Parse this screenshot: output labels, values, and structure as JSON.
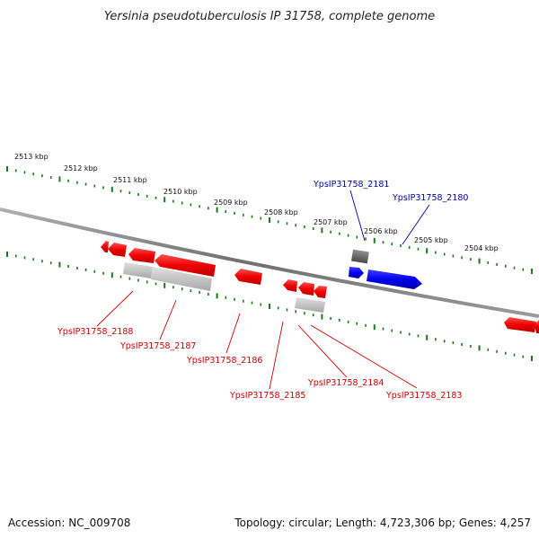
{
  "title": "Yersinia pseudotuberculosis IP 31758, complete genome",
  "footer": {
    "accession": "Accession: NC_009708",
    "summary": "Topology: circular; Length: 4,723,306 bp; Genes: 4,257"
  },
  "scale_labels": [
    "2513 kbp",
    "2512 kbp",
    "2511 kbp",
    "2510 kbp",
    "2509 kbp",
    "2508 kbp",
    "2507 kbp",
    "2506 kbp",
    "2505 kbp",
    "2504 kbp"
  ],
  "gene_labels": [
    {
      "text": "YpsIP31758_2181",
      "strand": "forward",
      "color": "#0000aa"
    },
    {
      "text": "YpsIP31758_2180",
      "strand": "forward",
      "color": "#0000aa"
    },
    {
      "text": "YpsIP31758_2188",
      "strand": "reverse",
      "color": "#cc0000"
    },
    {
      "text": "YpsIP31758_2187",
      "strand": "reverse",
      "color": "#cc0000"
    },
    {
      "text": "YpsIP31758_2186",
      "strand": "reverse",
      "color": "#cc0000"
    },
    {
      "text": "YpsIP31758_2185",
      "strand": "reverse",
      "color": "#cc0000"
    },
    {
      "text": "YpsIP31758_2184",
      "strand": "reverse",
      "color": "#cc0000"
    },
    {
      "text": "YpsIP31758_2183",
      "strand": "reverse",
      "color": "#cc0000"
    }
  ],
  "colors": {
    "forward_gene": "#0000ff",
    "reverse_gene": "#ff0000",
    "backbone": "#808080",
    "ticks": "#1a7a1a",
    "rna_gray": "#c0c0c0",
    "rna_dark": "#707070"
  }
}
